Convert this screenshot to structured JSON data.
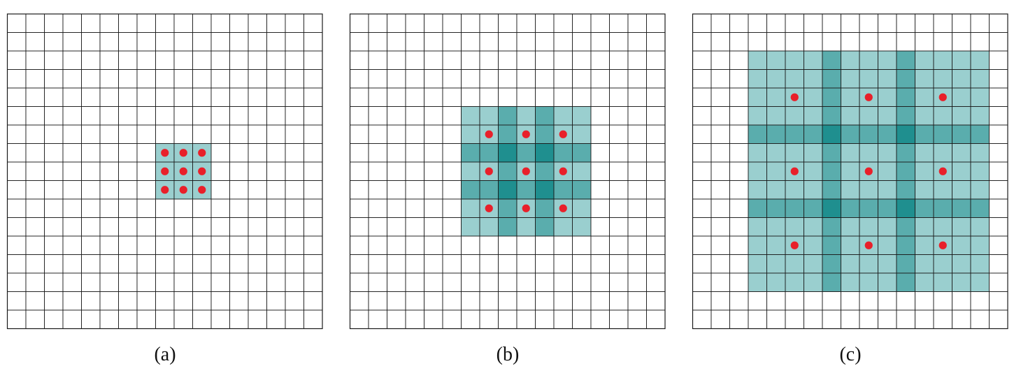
{
  "colors": {
    "grid_line": "#1a1a1a",
    "cell_empty": "#ffffff",
    "level_1": "#9acfcf",
    "level_2": "#5aadad",
    "level_3": "#1f8f8f",
    "dot": "#e8202a"
  },
  "grid_size": 17,
  "panels": [
    {
      "id": "a",
      "caption": "(a)",
      "dilation": 1,
      "kernel_center": [
        8,
        9
      ],
      "kernel_offsets": [
        -1,
        0,
        1
      ]
    },
    {
      "id": "b",
      "caption": "(b)",
      "dilation": 2,
      "kernel_center": [
        8,
        9
      ],
      "kernel_offsets": [
        -1,
        0,
        1
      ]
    },
    {
      "id": "c",
      "caption": "(c)",
      "dilation": 4,
      "kernel_center": [
        8,
        9
      ],
      "kernel_offsets": [
        -1,
        0,
        1
      ]
    }
  ]
}
